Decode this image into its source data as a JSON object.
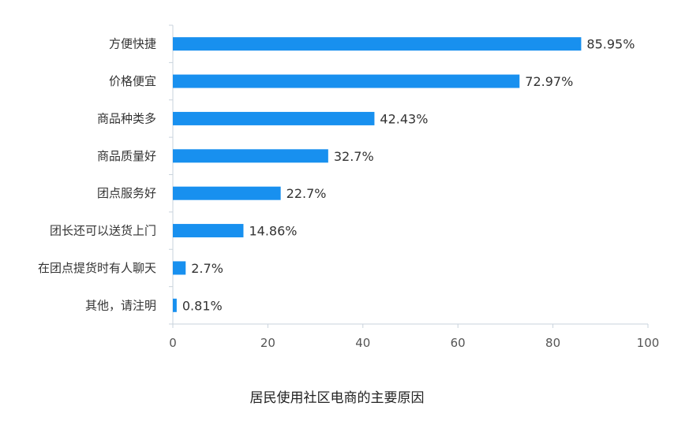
{
  "caption": "居民使用社区电商的主要原因",
  "colors": {
    "bar": "#1890ef",
    "axis": "#c9d3dc"
  },
  "chart_data": {
    "type": "bar",
    "orientation": "horizontal",
    "categories": [
      "方便快捷",
      "价格便宜",
      "商品种类多",
      "商品质量好",
      "团点服务好",
      "团长还可以送货上门",
      "在团点提货时有人聊天",
      "其他，请注明"
    ],
    "values": [
      85.95,
      72.97,
      42.43,
      32.7,
      22.7,
      14.86,
      2.7,
      0.81
    ],
    "value_labels": [
      "85.95%",
      "72.97%",
      "42.43%",
      "32.7%",
      "22.7%",
      "14.86%",
      "2.7%",
      "0.81%"
    ],
    "xlim": [
      0,
      100
    ],
    "xticks": [
      "0",
      "20",
      "40",
      "60",
      "80",
      "100"
    ],
    "grid": false,
    "legend": "none"
  }
}
